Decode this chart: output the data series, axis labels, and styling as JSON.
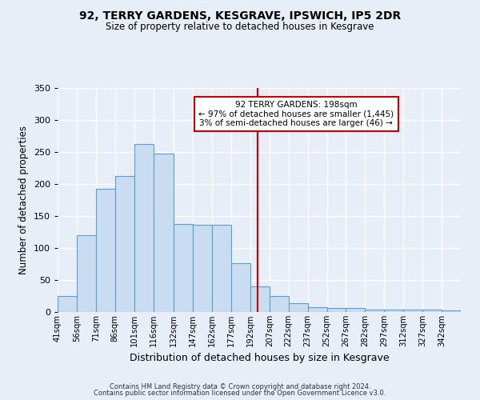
{
  "title": "92, TERRY GARDENS, KESGRAVE, IPSWICH, IP5 2DR",
  "subtitle": "Size of property relative to detached houses in Kesgrave",
  "xlabel": "Distribution of detached houses by size in Kesgrave",
  "ylabel": "Number of detached properties",
  "bar_color": "#c9dcf0",
  "bar_edge_color": "#5a9fd4",
  "bin_labels": [
    "41sqm",
    "56sqm",
    "71sqm",
    "86sqm",
    "101sqm",
    "116sqm",
    "132sqm",
    "147sqm",
    "162sqm",
    "177sqm",
    "192sqm",
    "207sqm",
    "222sqm",
    "237sqm",
    "252sqm",
    "267sqm",
    "282sqm",
    "297sqm",
    "312sqm",
    "327sqm",
    "342sqm"
  ],
  "bin_edges": [
    41,
    56,
    71,
    86,
    101,
    116,
    132,
    147,
    162,
    177,
    192,
    207,
    222,
    237,
    252,
    267,
    282,
    297,
    312,
    327,
    342,
    357
  ],
  "values": [
    25,
    120,
    193,
    213,
    262,
    247,
    137,
    136,
    136,
    76,
    40,
    25,
    14,
    8,
    6,
    6,
    4,
    4,
    4,
    4,
    3
  ],
  "vline_x": 198,
  "vline_color": "#cc0000",
  "annotation_text": "92 TERRY GARDENS: 198sqm\n← 97% of detached houses are smaller (1,445)\n3% of semi-detached houses are larger (46) →",
  "annotation_box_color": "#ffffff",
  "annotation_box_edge_color": "#cc0000",
  "ylim": [
    0,
    350
  ],
  "yticks": [
    0,
    50,
    100,
    150,
    200,
    250,
    300,
    350
  ],
  "bg_color": "#e8eef8",
  "grid_color": "#ffffff",
  "footer_line1": "Contains HM Land Registry data © Crown copyright and database right 2024.",
  "footer_line2": "Contains public sector information licensed under the Open Government Licence v3.0."
}
